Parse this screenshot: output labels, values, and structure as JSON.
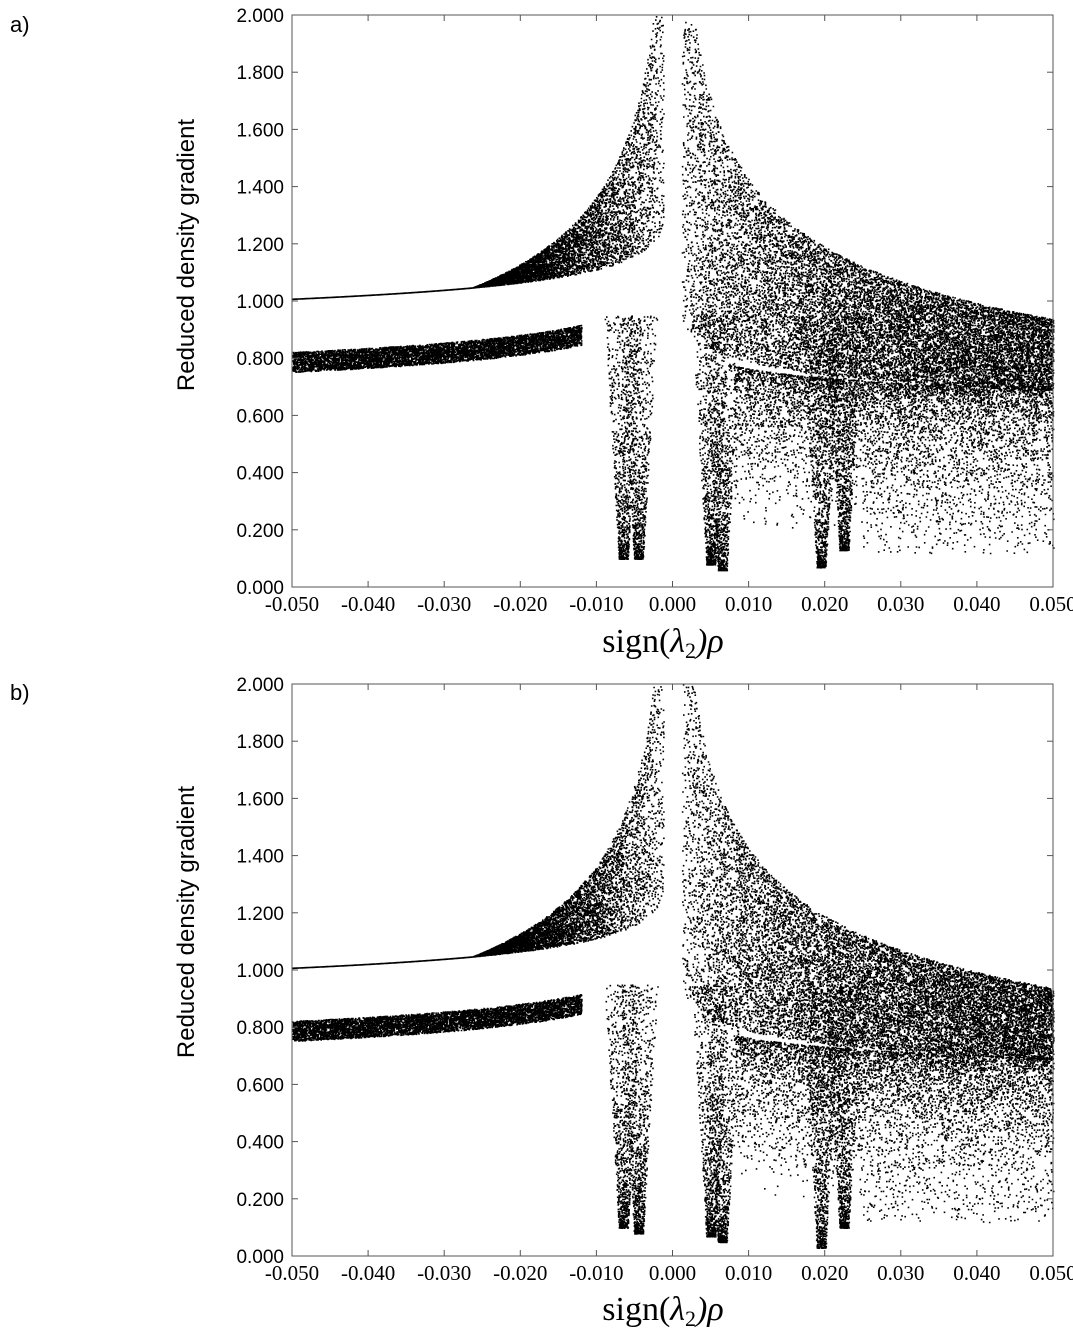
{
  "chart_data": [
    {
      "panel": "a)",
      "type": "scatter",
      "xlabel_parts": {
        "pre": "sign(",
        "sym": "λ",
        "sub": "2",
        "post": ")ρ"
      },
      "ylabel": "Reduced density gradient",
      "xlim": [
        -0.05,
        0.05
      ],
      "ylim": [
        0,
        2
      ],
      "xticks": [
        -0.05,
        -0.04,
        -0.03,
        -0.02,
        -0.01,
        0.0,
        0.01,
        0.02,
        0.03,
        0.04,
        0.05
      ],
      "xtick_labels": [
        "-0.050",
        "-0.040",
        "-0.030",
        "-0.020",
        "-0.010",
        "0.000",
        "0.010",
        "0.020",
        "0.030",
        "0.040",
        "0.050"
      ],
      "yticks": [
        0,
        0.2,
        0.4,
        0.6,
        0.8,
        1.0,
        1.2,
        1.4,
        1.6,
        1.8,
        2.0
      ],
      "ytick_labels": [
        "0.000",
        "0.200",
        "0.400",
        "0.600",
        "0.800",
        "1.000",
        "1.200",
        "1.400",
        "1.600",
        "1.800",
        "2.000"
      ],
      "grid": false,
      "point_color": "#000000",
      "seed": 11,
      "spikes": [
        {
          "x": -0.0065,
          "ymin": 0.1
        },
        {
          "x": -0.0045,
          "ymin": 0.1
        },
        {
          "x": 0.005,
          "ymin": 0.08
        },
        {
          "x": 0.0065,
          "ymin": 0.06
        },
        {
          "x": 0.0195,
          "ymin": 0.07
        },
        {
          "x": 0.0225,
          "ymin": 0.13
        }
      ]
    },
    {
      "panel": "b)",
      "type": "scatter",
      "xlabel_parts": {
        "pre": "sign(",
        "sym": "λ",
        "sub": "2",
        "post": ")ρ"
      },
      "ylabel": "Reduced density gradient",
      "xlim": [
        -0.05,
        0.05
      ],
      "ylim": [
        0,
        2
      ],
      "xticks": [
        -0.05,
        -0.04,
        -0.03,
        -0.02,
        -0.01,
        0.0,
        0.01,
        0.02,
        0.03,
        0.04,
        0.05
      ],
      "xtick_labels": [
        "-0.050",
        "-0.040",
        "-0.030",
        "-0.020",
        "-0.010",
        "0.000",
        "0.010",
        "0.020",
        "0.030",
        "0.040",
        "0.050"
      ],
      "yticks": [
        0,
        0.2,
        0.4,
        0.6,
        0.8,
        1.0,
        1.2,
        1.4,
        1.6,
        1.8,
        2.0
      ],
      "ytick_labels": [
        "0.000",
        "0.200",
        "0.400",
        "0.600",
        "0.800",
        "1.000",
        "1.200",
        "1.400",
        "1.600",
        "1.800",
        "2.000"
      ],
      "grid": false,
      "point_color": "#000000",
      "seed": 29,
      "spikes": [
        {
          "x": -0.0065,
          "ymin": 0.1
        },
        {
          "x": -0.0045,
          "ymin": 0.08
        },
        {
          "x": 0.005,
          "ymin": 0.07
        },
        {
          "x": 0.0065,
          "ymin": 0.05
        },
        {
          "x": 0.0195,
          "ymin": 0.03
        },
        {
          "x": 0.0225,
          "ymin": 0.1
        }
      ]
    }
  ]
}
